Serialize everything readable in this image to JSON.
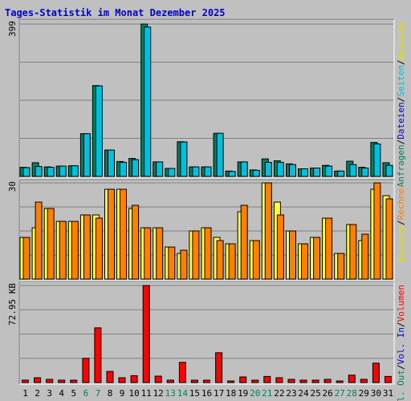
{
  "chart_data": {
    "title": "Tages-Statistik im Monat Dezember 2025",
    "type": "bar",
    "categories": [
      "1",
      "2",
      "3",
      "4",
      "5",
      "6",
      "7",
      "8",
      "9",
      "10",
      "11",
      "12",
      "13",
      "14",
      "15",
      "16",
      "17",
      "18",
      "19",
      "20",
      "21",
      "22",
      "23",
      "24",
      "25",
      "26",
      "27",
      "28",
      "29",
      "30",
      "31"
    ],
    "weekend_days": [
      "6",
      "7",
      "13",
      "14",
      "20",
      "21",
      "27",
      "28"
    ],
    "colors": {
      "background": "#c0c0c0",
      "title": "#0000cc",
      "weekday_label": "#000000",
      "weekend_label": "#008060",
      "grid": "#808080"
    },
    "panels": [
      {
        "name": "hits",
        "ymax_label": "399",
        "ymax": 399,
        "right_label_parts": [
          {
            "text": "Anfragen",
            "color": "#008060"
          },
          {
            "text": "/",
            "color": "#000000"
          },
          {
            "text": "Dateien",
            "color": "#0000cc"
          },
          {
            "text": "/",
            "color": "#000000"
          },
          {
            "text": "Seiten",
            "color": "#00c0e0"
          },
          {
            "text": "/",
            "color": "#000000"
          },
          {
            "text": "Besuche",
            "color": "#e0e000"
          }
        ],
        "series": [
          {
            "name": "Anfragen",
            "color": "#008060",
            "values": [
              24,
              36,
              25,
              27,
              28,
              112,
              238,
              69,
              39,
              47,
              399,
              38,
              21,
              91,
              25,
              25,
              113,
              14,
              38,
              17,
              46,
              41,
              33,
              20,
              22,
              29,
              14,
              40,
              24,
              89,
              36
            ]
          },
          {
            "name": "Dateien",
            "color": "#00c0e0",
            "values": [
              23,
              26,
              24,
              27,
              28,
              112,
              237,
              69,
              37,
              44,
              391,
              38,
              21,
              90,
              25,
              25,
              113,
              13,
              38,
              16,
              37,
              37,
              31,
              20,
              22,
              27,
              14,
              31,
              22,
              85,
              29
            ]
          }
        ]
      },
      {
        "name": "visits",
        "ymax_label": "30",
        "ymax": 30,
        "right_label_parts": [
          {
            "text": "Besuche",
            "color": "#e0e000"
          },
          {
            "text": "/",
            "color": "#000000"
          },
          {
            "text": "Rechner",
            "color": "#ff8000"
          }
        ],
        "series": [
          {
            "name": "Besuche",
            "color": "#ffff40",
            "values": [
              13,
              16,
              22,
              18,
              18,
              20,
              20,
              28,
              28,
              22,
              16,
              16,
              10,
              8,
              15,
              16,
              13,
              11,
              21,
              12,
              30,
              24,
              15,
              11,
              13,
              19,
              8,
              17,
              12,
              28,
              26
            ]
          },
          {
            "name": "Rechner",
            "color": "#ff8000",
            "values": [
              13,
              24,
              22,
              18,
              18,
              20,
              19,
              28,
              28,
              23,
              16,
              16,
              10,
              9,
              15,
              16,
              12,
              11,
              23,
              12,
              30,
              20,
              15,
              11,
              13,
              19,
              8,
              17,
              14,
              30,
              25
            ]
          }
        ]
      },
      {
        "name": "volume",
        "ymax_label": "72.95 KB",
        "ymax": 72.95,
        "right_label_parts": [
          {
            "text": "Vol. Out",
            "color": "#008060"
          },
          {
            "text": "/",
            "color": "#000000"
          },
          {
            "text": "Vol. In",
            "color": "#0000cc"
          },
          {
            "text": "/",
            "color": "#000000"
          },
          {
            "text": "Volumen",
            "color": "#ff0000"
          }
        ],
        "series": [
          {
            "name": "Volumen",
            "color": "#ff0000",
            "values": [
              1.8,
              3.6,
              2.4,
              1.8,
              1.8,
              18.2,
              41.1,
              8.4,
              3.6,
              5.2,
              72.95,
              4.8,
              1.8,
              15.2,
              1.8,
              1.8,
              22.4,
              1.2,
              4.2,
              1.8,
              4.6,
              3.6,
              2.4,
              1.8,
              1.8,
              2.4,
              1.2,
              5.6,
              2.4,
              14.6,
              4.6
            ]
          }
        ]
      }
    ]
  }
}
